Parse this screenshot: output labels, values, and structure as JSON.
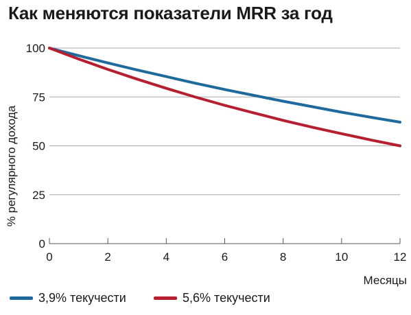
{
  "chart_data": {
    "type": "line",
    "title": "Как меняются показатели MRR за год",
    "xlabel": "Месяцы",
    "ylabel": "% регулярного дохода",
    "xlim": [
      0,
      12
    ],
    "ylim": [
      0,
      100
    ],
    "x_ticks": [
      0,
      2,
      4,
      6,
      8,
      10,
      12
    ],
    "y_ticks": [
      0,
      25,
      50,
      75,
      100
    ],
    "grid": "horizontal",
    "legend_position": "bottom",
    "x": [
      0,
      1,
      2,
      3,
      4,
      5,
      6,
      7,
      8,
      9,
      10,
      11,
      12
    ],
    "series": [
      {
        "name": "3,9% текучести",
        "color": "#1f6a9c",
        "values": [
          100,
          96.1,
          92.4,
          88.8,
          85.4,
          82.0,
          78.8,
          75.8,
          72.8,
          70.0,
          67.2,
          64.6,
          62.1
        ]
      },
      {
        "name": "5,6% текучести",
        "color": "#b51f30",
        "values": [
          100,
          94.4,
          89.1,
          84.1,
          79.4,
          74.9,
          70.7,
          66.8,
          63.0,
          59.5,
          56.2,
          53.0,
          50.0
        ]
      }
    ]
  }
}
